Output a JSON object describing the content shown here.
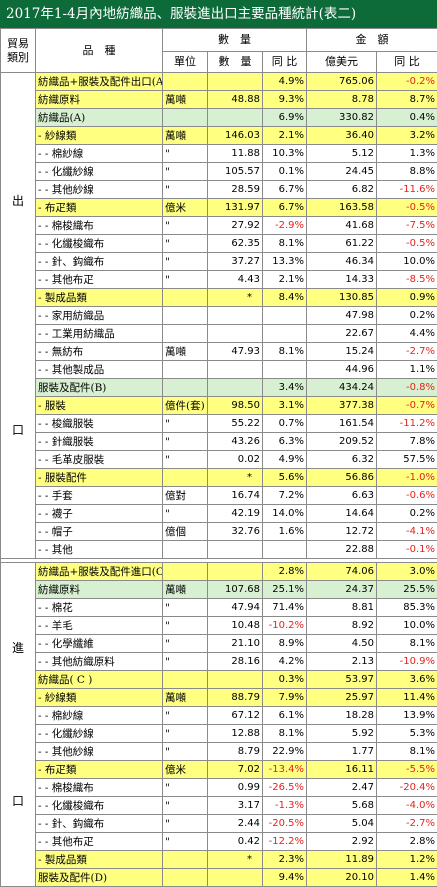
{
  "title": "2017年1-4月內地紡織品、服裝進出口主要品種統計(表二)",
  "headers": {
    "trade_type": "貿易類別",
    "item": "品　種",
    "quantity": "數　量",
    "amount": "金　額",
    "unit": "單位",
    "qty": "數　量",
    "yoy": "同 比",
    "value": "億美元",
    "yoy2": "同 比"
  },
  "export_label": [
    "出",
    "口"
  ],
  "import_label": [
    "進",
    "口"
  ],
  "export_rows": [
    {
      "name": "紡織品+服裝及配件出口(A+B)",
      "unit": "",
      "qty": "",
      "qyoy": "4.9%",
      "val": "765.06",
      "vyoy": "-0.2%",
      "style": "y"
    },
    {
      "name": "紡織原料",
      "unit": "萬噸",
      "qty": "48.88",
      "qyoy": "9.3%",
      "val": "8.78",
      "vyoy": "8.7%",
      "style": "y"
    },
    {
      "name": "紡織品(A)",
      "unit": "",
      "qty": "",
      "qyoy": "6.9%",
      "val": "330.82",
      "vyoy": "0.4%",
      "style": "g"
    },
    {
      "name": "- 紗線類",
      "unit": "萬噸",
      "qty": "146.03",
      "qyoy": "2.1%",
      "val": "36.40",
      "vyoy": "3.2%",
      "style": "y"
    },
    {
      "name": "- - 棉紗線",
      "unit": "\"",
      "qty": "11.88",
      "qyoy": "10.3%",
      "val": "5.12",
      "vyoy": "1.3%",
      "style": "w"
    },
    {
      "name": "- - 化纖紗線",
      "unit": "\"",
      "qty": "105.57",
      "qyoy": "0.1%",
      "val": "24.45",
      "vyoy": "8.8%",
      "style": "w"
    },
    {
      "name": "- - 其他紗線",
      "unit": "\"",
      "qty": "28.59",
      "qyoy": "6.7%",
      "val": "6.82",
      "vyoy": "-11.6%",
      "style": "w"
    },
    {
      "name": "- 布疋類",
      "unit": "億米",
      "qty": "131.97",
      "qyoy": "6.7%",
      "val": "163.58",
      "vyoy": "-0.5%",
      "style": "y"
    },
    {
      "name": "- - 棉梭織布",
      "unit": "\"",
      "qty": "27.92",
      "qyoy": "-2.9%",
      "val": "41.68",
      "vyoy": "-7.5%",
      "style": "w"
    },
    {
      "name": "- - 化纖梭織布",
      "unit": "\"",
      "qty": "62.35",
      "qyoy": "8.1%",
      "val": "61.22",
      "vyoy": "-0.5%",
      "style": "w"
    },
    {
      "name": "- - 針、鈎織布",
      "unit": "\"",
      "qty": "37.27",
      "qyoy": "13.3%",
      "val": "46.34",
      "vyoy": "10.0%",
      "style": "w"
    },
    {
      "name": "- - 其他布疋",
      "unit": "\"",
      "qty": "4.43",
      "qyoy": "2.1%",
      "val": "14.33",
      "vyoy": "-8.5%",
      "style": "w"
    },
    {
      "name": "- 製成品類",
      "unit": "",
      "qty": "*",
      "qyoy": "8.4%",
      "val": "130.85",
      "vyoy": "0.9%",
      "style": "y"
    },
    {
      "name": "- - 家用紡織品",
      "unit": "",
      "qty": "",
      "qyoy": "",
      "val": "47.98",
      "vyoy": "0.2%",
      "style": "w"
    },
    {
      "name": "- - 工業用紡織品",
      "unit": "",
      "qty": "",
      "qyoy": "",
      "val": "22.67",
      "vyoy": "4.4%",
      "style": "w"
    },
    {
      "name": "- - 無紡布",
      "unit": "萬噸",
      "qty": "47.93",
      "qyoy": "8.1%",
      "val": "15.24",
      "vyoy": "-2.7%",
      "style": "w"
    },
    {
      "name": "- - 其他製成品",
      "unit": "",
      "qty": "",
      "qyoy": "",
      "val": "44.96",
      "vyoy": "1.1%",
      "style": "w"
    },
    {
      "name": "服裝及配件(B)",
      "unit": "",
      "qty": "",
      "qyoy": "3.4%",
      "val": "434.24",
      "vyoy": "-0.8%",
      "style": "g"
    },
    {
      "name": "- 服裝",
      "unit": "億件(套)",
      "qty": "98.50",
      "qyoy": "3.1%",
      "val": "377.38",
      "vyoy": "-0.7%",
      "style": "y"
    },
    {
      "name": "- - 梭織服裝",
      "unit": "\"",
      "qty": "55.22",
      "qyoy": "0.7%",
      "val": "161.54",
      "vyoy": "-11.2%",
      "style": "w"
    },
    {
      "name": "- - 針織服裝",
      "unit": "\"",
      "qty": "43.26",
      "qyoy": "6.3%",
      "val": "209.52",
      "vyoy": "7.8%",
      "style": "w"
    },
    {
      "name": "- - 毛革皮服裝",
      "unit": "\"",
      "qty": "0.02",
      "qyoy": "4.9%",
      "val": "6.32",
      "vyoy": "57.5%",
      "style": "w"
    },
    {
      "name": "- 服裝配件",
      "unit": "",
      "qty": "*",
      "qyoy": "5.6%",
      "val": "56.86",
      "vyoy": "-1.0%",
      "style": "y"
    },
    {
      "name": "- - 手套",
      "unit": "億對",
      "qty": "16.74",
      "qyoy": "7.2%",
      "val": "6.63",
      "vyoy": "-0.6%",
      "style": "w"
    },
    {
      "name": "- - 襪子",
      "unit": "\"",
      "qty": "42.19",
      "qyoy": "14.0%",
      "val": "14.64",
      "vyoy": "0.2%",
      "style": "w"
    },
    {
      "name": "- - 帽子",
      "unit": "億個",
      "qty": "32.76",
      "qyoy": "1.6%",
      "val": "12.72",
      "vyoy": "-4.1%",
      "style": "w"
    },
    {
      "name": "- - 其他",
      "unit": "",
      "qty": "",
      "qyoy": "",
      "val": "22.88",
      "vyoy": "-0.1%",
      "style": "w"
    }
  ],
  "import_rows": [
    {
      "name": "紡織品+服裝及配件進口(C+D)",
      "unit": "",
      "qty": "",
      "qyoy": "2.8%",
      "val": "74.06",
      "vyoy": "3.0%",
      "style": "y"
    },
    {
      "name": "紡織原料",
      "unit": "萬噸",
      "qty": "107.68",
      "qyoy": "25.1%",
      "val": "24.37",
      "vyoy": "25.5%",
      "style": "g"
    },
    {
      "name": "- - 棉花",
      "unit": "\"",
      "qty": "47.94",
      "qyoy": "71.4%",
      "val": "8.81",
      "vyoy": "85.3%",
      "style": "w"
    },
    {
      "name": "- - 羊毛",
      "unit": "\"",
      "qty": "10.48",
      "qyoy": "-10.2%",
      "val": "8.92",
      "vyoy": "10.0%",
      "style": "w"
    },
    {
      "name": "- - 化學纖維",
      "unit": "\"",
      "qty": "21.10",
      "qyoy": "8.9%",
      "val": "4.50",
      "vyoy": "8.1%",
      "style": "w"
    },
    {
      "name": "- - 其他紡織原料",
      "unit": "\"",
      "qty": "28.16",
      "qyoy": "4.2%",
      "val": "2.13",
      "vyoy": "-10.9%",
      "style": "w"
    },
    {
      "name": "紡織品( C )",
      "unit": "",
      "qty": "",
      "qyoy": "0.3%",
      "val": "53.97",
      "vyoy": "3.6%",
      "style": "y"
    },
    {
      "name": "- 紗線類",
      "unit": "萬噸",
      "qty": "88.79",
      "qyoy": "7.9%",
      "val": "25.97",
      "vyoy": "11.4%",
      "style": "y"
    },
    {
      "name": "- - 棉紗線",
      "unit": "\"",
      "qty": "67.12",
      "qyoy": "6.1%",
      "val": "18.28",
      "vyoy": "13.9%",
      "style": "w"
    },
    {
      "name": "- - 化纖紗線",
      "unit": "\"",
      "qty": "12.88",
      "qyoy": "8.1%",
      "val": "5.92",
      "vyoy": "5.3%",
      "style": "w"
    },
    {
      "name": "- - 其他紗線",
      "unit": "\"",
      "qty": "8.79",
      "qyoy": "22.9%",
      "val": "1.77",
      "vyoy": "8.1%",
      "style": "w"
    },
    {
      "name": "- 布疋類",
      "unit": "億米",
      "qty": "7.02",
      "qyoy": "-13.4%",
      "val": "16.11",
      "vyoy": "-5.5%",
      "style": "y"
    },
    {
      "name": "- - 棉梭織布",
      "unit": "\"",
      "qty": "0.99",
      "qyoy": "-26.5%",
      "val": "2.47",
      "vyoy": "-20.4%",
      "style": "w"
    },
    {
      "name": "- - 化纖梭織布",
      "unit": "\"",
      "qty": "3.17",
      "qyoy": "-1.3%",
      "val": "5.68",
      "vyoy": "-4.0%",
      "style": "w"
    },
    {
      "name": "- - 針、鈎織布",
      "unit": "\"",
      "qty": "2.44",
      "qyoy": "-20.5%",
      "val": "5.04",
      "vyoy": "-2.7%",
      "style": "w"
    },
    {
      "name": "- - 其他布疋",
      "unit": "\"",
      "qty": "0.42",
      "qyoy": "-12.2%",
      "val": "2.92",
      "vyoy": "2.8%",
      "style": "w"
    },
    {
      "name": "- 製成品類",
      "unit": "",
      "qty": "*",
      "qyoy": "2.3%",
      "val": "11.89",
      "vyoy": "1.2%",
      "style": "y"
    },
    {
      "name": "服裝及配件(D)",
      "unit": "",
      "qty": "",
      "qyoy": "9.4%",
      "val": "20.10",
      "vyoy": "1.4%",
      "style": "y"
    }
  ]
}
